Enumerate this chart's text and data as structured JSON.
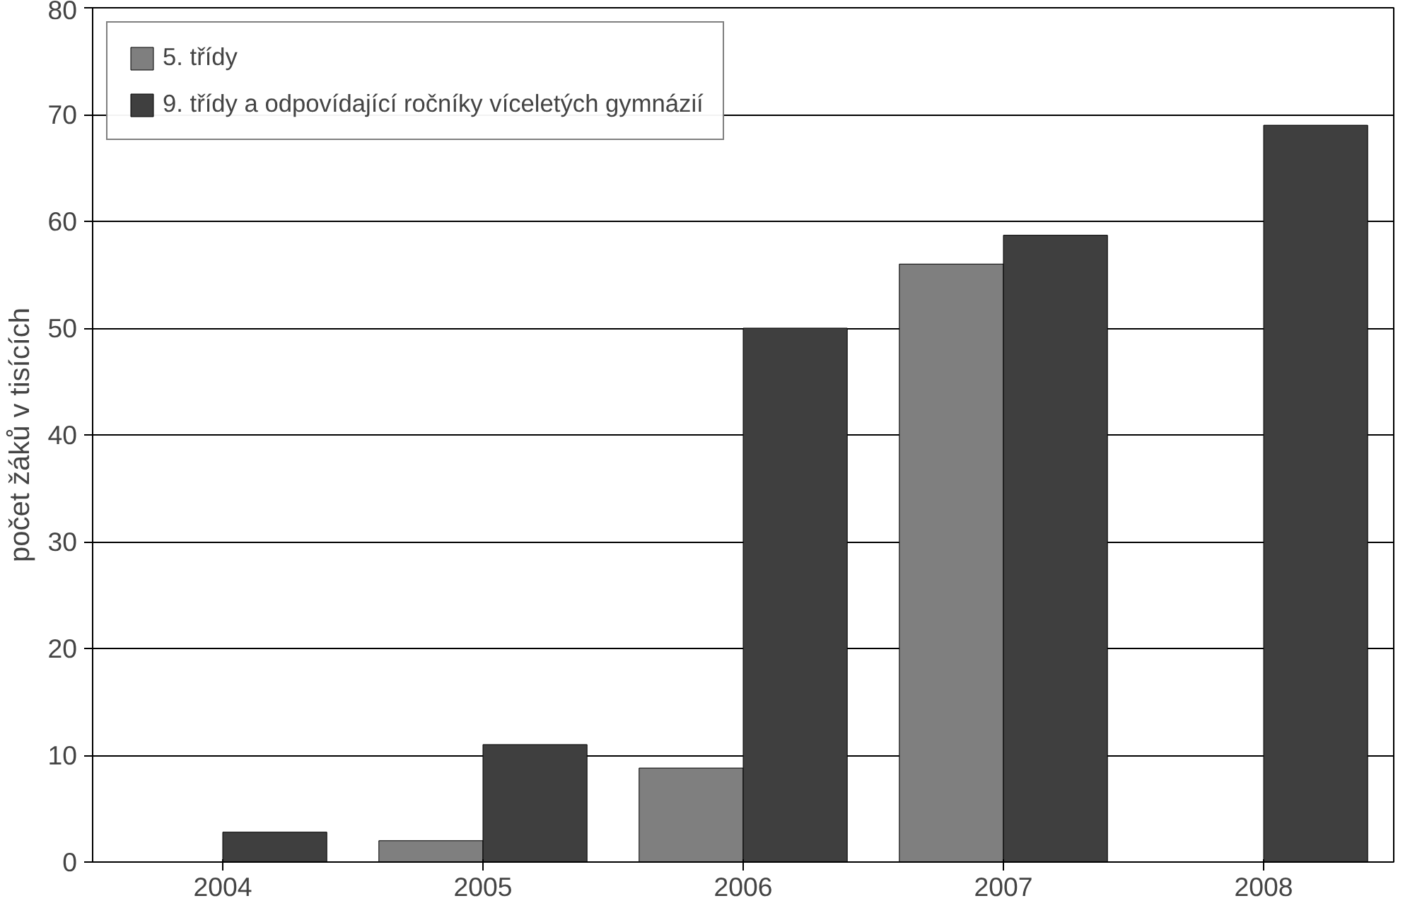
{
  "chart_data": {
    "type": "bar",
    "ylabel": "počet žáků v tisících",
    "categories": [
      "2004",
      "2005",
      "2006",
      "2007",
      "2008"
    ],
    "series": [
      {
        "name": "5. třídy",
        "color": "#7f7f7f",
        "values": [
          null,
          2,
          8.8,
          56,
          null
        ]
      },
      {
        "name": "9. třídy a odpovídající ročníky víceletých gymnázií",
        "color": "#3f3f3f",
        "values": [
          2.8,
          11,
          50,
          58.7,
          69
        ]
      }
    ],
    "ylim": [
      0,
      80
    ],
    "yticks": [
      0,
      10,
      20,
      30,
      40,
      50,
      60,
      70,
      80
    ],
    "grid": "y",
    "legend": "top left"
  }
}
